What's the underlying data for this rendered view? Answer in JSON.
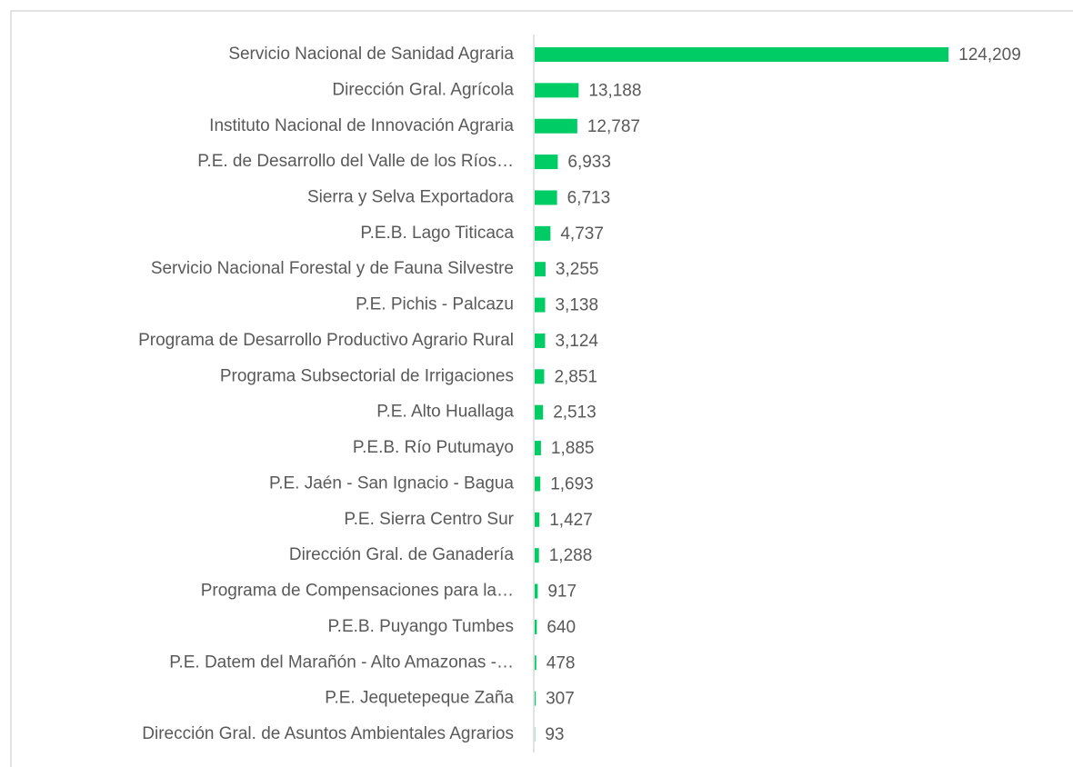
{
  "chart_data": {
    "type": "bar",
    "orientation": "horizontal",
    "categories": [
      "Servicio Nacional de Sanidad Agraria",
      "Dirección Gral. Agrícola",
      "Instituto Nacional de Innovación Agraria",
      "P.E. de Desarrollo del Valle de los Ríos…",
      "Sierra y Selva Exportadora",
      "P.E.B. Lago Titicaca",
      "Servicio Nacional Forestal y de Fauna Silvestre",
      "P.E. Pichis - Palcazu",
      "Programa de Desarrollo Productivo Agrario Rural",
      "Programa Subsectorial de Irrigaciones",
      "P.E. Alto Huallaga",
      "P.E.B. Río Putumayo",
      "P.E. Jaén - San Ignacio - Bagua",
      "P.E. Sierra Centro Sur",
      "Dirección Gral. de Ganadería",
      "Programa de Compensaciones para la…",
      "P.E.B. Puyango Tumbes",
      "P.E. Datem del Marañón - Alto Amazonas -…",
      "P.E. Jequetepeque Zaña",
      "Dirección Gral. de Asuntos Ambientales Agrarios"
    ],
    "values": [
      124209,
      13188,
      12787,
      6933,
      6713,
      4737,
      3255,
      3138,
      3124,
      2851,
      2513,
      1885,
      1693,
      1427,
      1288,
      917,
      640,
      478,
      307,
      93
    ],
    "value_labels": [
      "124,209",
      "13,188",
      "12,787",
      "6,933",
      "6,713",
      "4,737",
      "3,255",
      "3,138",
      "3,124",
      "2,851",
      "2,513",
      "1,885",
      "1,693",
      "1,427",
      "1,288",
      "917",
      "640",
      "478",
      "307",
      "93"
    ],
    "color": "#00cc66",
    "xlim": [
      0,
      140000
    ]
  }
}
